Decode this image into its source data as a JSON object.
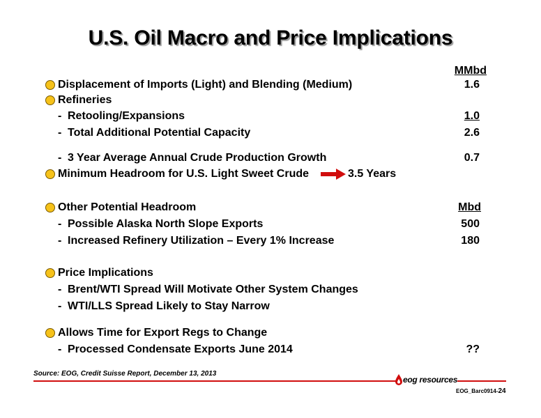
{
  "title": "U.S. Oil Macro and Price Implications",
  "units": {
    "mmbd": "MMbd",
    "mbd": "Mbd"
  },
  "section1": {
    "item1": {
      "label": "Displacement of Imports (Light) and Blending (Medium)",
      "value": "1.6"
    },
    "item2": {
      "label": "Refineries"
    },
    "sub1": {
      "label": "Retooling/Expansions",
      "value": "1.0"
    },
    "sub2": {
      "label": "Total Additional Potential Capacity",
      "value": "2.6"
    },
    "sub3": {
      "label": "3 Year Average Annual Crude Production Growth",
      "value": "0.7"
    },
    "item3": {
      "label": "Minimum Headroom for U.S. Light Sweet Crude",
      "result": "3.5 Years"
    }
  },
  "section2": {
    "item1": {
      "label": "Other Potential Headroom"
    },
    "sub1": {
      "label": "Possible Alaska North Slope Exports",
      "value": "500"
    },
    "sub2": {
      "label": "Increased Refinery Utilization – Every 1% Increase",
      "value": "180"
    }
  },
  "section3": {
    "item1": {
      "label": "Price Implications"
    },
    "sub1": {
      "label": "Brent/WTI Spread Will Motivate Other System Changes"
    },
    "sub2": {
      "label": "WTI/LLS Spread Likely to Stay Narrow"
    }
  },
  "section4": {
    "item1": {
      "label": "Allows Time for Export Regs to Change"
    },
    "sub1": {
      "label": "Processed Condensate Exports June 2014",
      "value": "??"
    }
  },
  "footer": {
    "source": "Source: EOG, Credit Suisse Report, December 13, 2013",
    "logo_text": "eog resources",
    "doc_id": "EOG_Barc0914-",
    "page": "24"
  },
  "dash": "-",
  "colors": {
    "accent": "#d10d0d",
    "bullet": "#f6c21a"
  }
}
